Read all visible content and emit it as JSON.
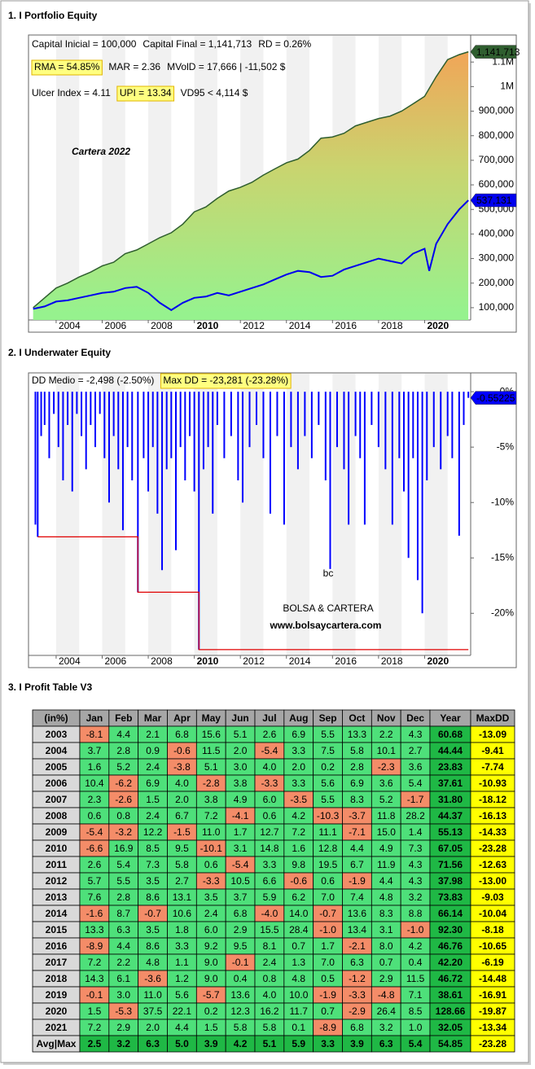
{
  "sections": [
    "1. I Portfolio Equity",
    "2. I Underwater Equity",
    "3. I Profit Table V3"
  ],
  "chart_data": [
    {
      "type": "area",
      "title": "Cartera 2022",
      "info": [
        [
          {
            "text": "Capital Inicial = 100,000"
          },
          {
            "text": "Capital Final = 1,141,713"
          },
          {
            "text": "RD = 0.26%"
          }
        ],
        [
          {
            "text": "RMA = 54.85%",
            "highlight": true
          },
          {
            "text": "MAR = 2.36"
          },
          {
            "text": "MVolD = 17,666 | -11,502 $"
          }
        ],
        [
          {
            "text": "Ulcer Index = 4.11"
          },
          {
            "text": "UPI = 13.34",
            "highlight": true
          },
          {
            "text": "VD95 < 4,114 $"
          }
        ]
      ],
      "xlim": [
        2002.8,
        2022.0
      ],
      "xticks": [
        2004,
        2006,
        2008,
        2010,
        2012,
        2014,
        2016,
        2018,
        2020
      ],
      "ylim": [
        50000,
        1210000
      ],
      "yticks": [
        {
          "value": 100000,
          "label": "100,000"
        },
        {
          "value": 200000,
          "label": "200,000"
        },
        {
          "value": 300000,
          "label": "300,000"
        },
        {
          "value": 400000,
          "label": "400,000"
        },
        {
          "value": 500000,
          "label": "500,000"
        },
        {
          "value": 600000,
          "label": "600,000"
        },
        {
          "value": 700000,
          "label": "700,000"
        },
        {
          "value": 800000,
          "label": "800,000"
        },
        {
          "value": 900000,
          "label": "900,000"
        },
        {
          "value": 1000000,
          "label": "1M"
        },
        {
          "value": 1100000,
          "label": "1.1M"
        }
      ],
      "series": [
        {
          "type": "area",
          "color": "#2f5e2f",
          "end_label": "1,141,713",
          "x": [
            2003.0,
            2003.5,
            2004.0,
            2004.5,
            2005.0,
            2005.5,
            2006.0,
            2006.5,
            2007.0,
            2007.5,
            2008.0,
            2008.5,
            2009.0,
            2009.5,
            2010.0,
            2010.5,
            2011.0,
            2011.5,
            2012.0,
            2012.5,
            2013.0,
            2013.5,
            2014.0,
            2014.5,
            2015.0,
            2015.5,
            2016.0,
            2016.5,
            2017.0,
            2017.5,
            2018.0,
            2018.5,
            2019.0,
            2019.5,
            2020.0,
            2020.5,
            2021.0,
            2021.5,
            2021.9
          ],
          "values": [
            100000,
            140000,
            180000,
            200000,
            225000,
            245000,
            270000,
            285000,
            320000,
            335000,
            360000,
            385000,
            405000,
            440000,
            490000,
            510000,
            545000,
            575000,
            590000,
            610000,
            640000,
            665000,
            690000,
            705000,
            740000,
            790000,
            795000,
            810000,
            840000,
            855000,
            870000,
            880000,
            900000,
            930000,
            960000,
            1040000,
            1110000,
            1130000,
            1141713
          ]
        },
        {
          "type": "line",
          "color": "#0000ee",
          "end_label": "537,131",
          "x": [
            2003.0,
            2003.5,
            2004.0,
            2004.5,
            2005.0,
            2005.5,
            2006.0,
            2006.5,
            2007.0,
            2007.5,
            2008.0,
            2008.5,
            2009.0,
            2009.5,
            2010.0,
            2010.5,
            2011.0,
            2011.5,
            2012.0,
            2012.5,
            2013.0,
            2013.5,
            2014.0,
            2014.5,
            2015.0,
            2015.5,
            2016.0,
            2016.5,
            2017.0,
            2017.5,
            2018.0,
            2018.5,
            2019.0,
            2019.5,
            2020.0,
            2020.2,
            2020.5,
            2021.0,
            2021.5,
            2021.9
          ],
          "values": [
            95000,
            105000,
            125000,
            130000,
            140000,
            150000,
            160000,
            165000,
            180000,
            185000,
            160000,
            120000,
            90000,
            120000,
            140000,
            145000,
            160000,
            150000,
            165000,
            180000,
            195000,
            215000,
            235000,
            250000,
            245000,
            225000,
            230000,
            255000,
            270000,
            285000,
            300000,
            290000,
            280000,
            320000,
            340000,
            250000,
            360000,
            440000,
            500000,
            537131
          ]
        }
      ]
    },
    {
      "type": "bar",
      "info": [
        [
          {
            "text": "DD Medio = -2,498 (-2.50%)"
          },
          {
            "text": "Max DD = -23,281 (-23.28%)",
            "highlight": true
          }
        ]
      ],
      "watermark": [
        "bc",
        "BOLSA & CARTERA",
        "www.bolsaycartera.com"
      ],
      "xlim": [
        2002.8,
        2022.0
      ],
      "xticks": [
        2004,
        2006,
        2008,
        2010,
        2012,
        2014,
        2016,
        2018,
        2020
      ],
      "ylim": [
        -23.8,
        1.7
      ],
      "yticks": [
        {
          "value": 0,
          "label": "0%"
        },
        {
          "value": -5,
          "label": "-5%"
        },
        {
          "value": -10,
          "label": "-10%"
        },
        {
          "value": -15,
          "label": "-15%"
        },
        {
          "value": -20,
          "label": "-20%"
        }
      ],
      "series": [
        {
          "type": "bar",
          "color": "#0000ff",
          "end_label": "-0.55225",
          "x": [
            2003.1,
            2003.2,
            2003.35,
            2003.5,
            2003.7,
            2003.9,
            2004.1,
            2004.3,
            2004.5,
            2004.7,
            2004.9,
            2005.1,
            2005.3,
            2005.5,
            2005.7,
            2005.9,
            2006.1,
            2006.3,
            2006.5,
            2006.7,
            2006.9,
            2007.1,
            2007.3,
            2007.55,
            2007.8,
            2008.0,
            2008.2,
            2008.4,
            2008.6,
            2008.8,
            2009.0,
            2009.2,
            2009.4,
            2009.6,
            2009.8,
            2010.0,
            2010.2,
            2010.4,
            2010.6,
            2010.8,
            2011.0,
            2011.3,
            2011.6,
            2011.9,
            2012.1,
            2012.4,
            2012.7,
            2013.0,
            2013.3,
            2013.6,
            2013.9,
            2014.2,
            2014.5,
            2014.8,
            2015.1,
            2015.4,
            2015.7,
            2015.9,
            2016.2,
            2016.5,
            2016.7,
            2017.0,
            2017.2,
            2017.4,
            2017.7,
            2018.0,
            2018.3,
            2018.6,
            2018.9,
            2019.1,
            2019.3,
            2019.5,
            2019.7,
            2019.9,
            2020.1,
            2020.4,
            2020.7,
            2021.0,
            2021.2,
            2021.5,
            2021.7,
            2021.9
          ],
          "values": [
            -12,
            -13.1,
            -4,
            -3,
            -6,
            -2,
            -5,
            -8,
            -3,
            -9,
            -2,
            -4,
            -7,
            -3,
            -5,
            -2,
            -6,
            -10,
            -4,
            -7,
            -12.5,
            -5,
            -8,
            -18.1,
            -6,
            -9,
            -5,
            -11,
            -16.1,
            -7,
            -6,
            -14.3,
            -5,
            -8,
            -4,
            -9,
            -23.28,
            -7,
            -5,
            -11,
            -3,
            -6,
            -4,
            -8,
            -10,
            -5,
            -3,
            -6,
            -11,
            -4,
            -12,
            -5,
            -7,
            -4,
            -6,
            -3,
            -8,
            -16,
            -5,
            -7,
            -12,
            -4,
            -6,
            -12,
            -3,
            -5,
            -7,
            -12,
            -6,
            -9,
            -15,
            -6,
            -17,
            -20,
            -8,
            -5,
            -7,
            -4,
            -6,
            -13,
            -3,
            -0.55225
          ]
        },
        {
          "type": "step",
          "color": "#e00000",
          "x": [
            2003.2,
            2007.55,
            2007.55,
            2010.2,
            2010.2,
            2021.9
          ],
          "values": [
            -13.1,
            -13.1,
            -18.1,
            -18.1,
            -23.28,
            -23.28
          ]
        }
      ]
    }
  ],
  "table": {
    "colors": {
      "header": "#a6a6a6",
      "label": "#d9d9d9",
      "positive": "#4ee07a",
      "negative": "#f48c68",
      "year": "#1fb845",
      "maxdd": "#ffff00"
    },
    "header": [
      "(in%)",
      "Jan",
      "Feb",
      "Mar",
      "Apr",
      "May",
      "Jun",
      "Jul",
      "Aug",
      "Sep",
      "Oct",
      "Nov",
      "Dec",
      "Year",
      "MaxDD"
    ],
    "rows": [
      [
        "2003",
        "-8.1",
        "4.4",
        "2.1",
        "6.8",
        "15.6",
        "5.1",
        "2.6",
        "6.9",
        "5.5",
        "13.3",
        "2.2",
        "4.3",
        "60.68",
        "-13.09"
      ],
      [
        "2004",
        "3.7",
        "2.8",
        "0.9",
        "-0.6",
        "11.5",
        "2.0",
        "-5.4",
        "3.3",
        "7.5",
        "5.8",
        "10.1",
        "2.7",
        "44.44",
        "-9.41"
      ],
      [
        "2005",
        "1.6",
        "5.2",
        "2.4",
        "-3.8",
        "5.1",
        "3.0",
        "4.0",
        "2.0",
        "0.2",
        "2.8",
        "-2.3",
        "3.6",
        "23.83",
        "-7.74"
      ],
      [
        "2006",
        "10.4",
        "-6.2",
        "6.9",
        "4.0",
        "-2.8",
        "3.8",
        "-3.3",
        "3.3",
        "5.6",
        "6.9",
        "3.6",
        "5.4",
        "37.61",
        "-10.93"
      ],
      [
        "2007",
        "2.3",
        "-2.6",
        "1.5",
        "2.0",
        "3.8",
        "4.9",
        "6.0",
        "-3.5",
        "5.5",
        "8.3",
        "5.2",
        "-1.7",
        "31.80",
        "-18.12"
      ],
      [
        "2008",
        "0.6",
        "0.8",
        "2.4",
        "6.7",
        "7.2",
        "-4.1",
        "0.6",
        "4.2",
        "-10.3",
        "-3.7",
        "11.8",
        "28.2",
        "44.37",
        "-16.13"
      ],
      [
        "2009",
        "-5.4",
        "-3.2",
        "12.2",
        "-1.5",
        "11.0",
        "1.7",
        "12.7",
        "7.2",
        "11.1",
        "-7.1",
        "15.0",
        "1.4",
        "55.13",
        "-14.33"
      ],
      [
        "2010",
        "-6.6",
        "16.9",
        "8.5",
        "9.5",
        "-10.1",
        "3.1",
        "14.8",
        "1.6",
        "12.8",
        "4.4",
        "4.9",
        "7.3",
        "67.05",
        "-23.28"
      ],
      [
        "2011",
        "2.6",
        "5.4",
        "7.3",
        "5.8",
        "0.6",
        "-5.4",
        "3.3",
        "9.8",
        "19.5",
        "6.7",
        "11.9",
        "4.3",
        "71.56",
        "-12.63"
      ],
      [
        "2012",
        "5.7",
        "5.5",
        "3.5",
        "2.7",
        "-3.3",
        "10.5",
        "6.6",
        "-0.6",
        "0.6",
        "-1.9",
        "4.4",
        "4.3",
        "37.98",
        "-13.00"
      ],
      [
        "2013",
        "7.6",
        "2.8",
        "8.6",
        "13.1",
        "3.5",
        "3.7",
        "5.9",
        "6.2",
        "7.0",
        "7.4",
        "4.8",
        "3.2",
        "73.83",
        "-9.03"
      ],
      [
        "2014",
        "-1.6",
        "8.7",
        "-0.7",
        "10.6",
        "2.4",
        "6.8",
        "-4.0",
        "14.0",
        "-0.7",
        "13.6",
        "8.3",
        "8.8",
        "66.14",
        "-10.04"
      ],
      [
        "2015",
        "13.3",
        "6.3",
        "3.5",
        "1.8",
        "6.0",
        "2.9",
        "15.5",
        "28.4",
        "-1.0",
        "13.4",
        "3.1",
        "-1.0",
        "92.30",
        "-8.18"
      ],
      [
        "2016",
        "-8.9",
        "4.4",
        "8.6",
        "3.3",
        "9.2",
        "9.5",
        "8.1",
        "0.7",
        "1.7",
        "-2.1",
        "8.0",
        "4.2",
        "46.76",
        "-10.65"
      ],
      [
        "2017",
        "7.2",
        "2.2",
        "4.8",
        "1.1",
        "9.0",
        "-0.1",
        "2.4",
        "1.3",
        "7.0",
        "6.3",
        "0.7",
        "0.4",
        "42.20",
        "-6.19"
      ],
      [
        "2018",
        "14.3",
        "6.1",
        "-3.6",
        "1.2",
        "9.0",
        "0.4",
        "0.8",
        "4.8",
        "0.5",
        "-1.2",
        "2.9",
        "11.5",
        "46.72",
        "-14.48"
      ],
      [
        "2019",
        "-0.1",
        "3.0",
        "11.0",
        "5.6",
        "-5.7",
        "13.6",
        "4.0",
        "10.0",
        "-1.9",
        "-3.3",
        "-4.8",
        "7.1",
        "38.61",
        "-16.91"
      ],
      [
        "2020",
        "1.5",
        "-5.3",
        "37.5",
        "22.1",
        "0.2",
        "12.3",
        "16.2",
        "11.7",
        "0.7",
        "-2.9",
        "26.4",
        "8.5",
        "128.66",
        "-19.87"
      ],
      [
        "2021",
        "7.2",
        "2.9",
        "2.0",
        "4.4",
        "1.5",
        "5.8",
        "5.8",
        "0.1",
        "-8.9",
        "6.8",
        "3.2",
        "1.0",
        "32.05",
        "-13.34"
      ],
      [
        "Avg|Max",
        "2.5",
        "3.2",
        "6.3",
        "5.0",
        "3.9",
        "4.2",
        "5.1",
        "5.9",
        "3.3",
        "3.9",
        "6.3",
        "5.4",
        "54.85",
        "-23.28"
      ]
    ]
  }
}
